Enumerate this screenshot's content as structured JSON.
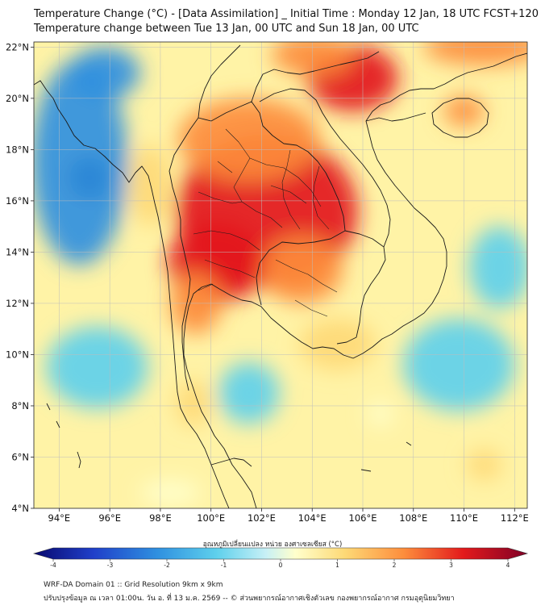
{
  "title": {
    "line1": "Temperature Change (°C) - [Data Assimilation] _ Initial Time : Monday 12 Jan, 18 UTC FCST+120",
    "line2": "Temperature change between Tue 13 Jan, 00 UTC and Sun 18 Jan, 00 UTC"
  },
  "map": {
    "lon_range": [
      93,
      112.5
    ],
    "lat_range": [
      4,
      22.2
    ],
    "lat_ticks": [
      {
        "value": 22,
        "label": "22°N"
      },
      {
        "value": 20,
        "label": "20°N"
      },
      {
        "value": 18,
        "label": "18°N"
      },
      {
        "value": 16,
        "label": "16°N"
      },
      {
        "value": 14,
        "label": "14°N"
      },
      {
        "value": 12,
        "label": "12°N"
      },
      {
        "value": 10,
        "label": "10°N"
      },
      {
        "value": 8,
        "label": "8°N"
      },
      {
        "value": 6,
        "label": "6°N"
      },
      {
        "value": 4,
        "label": "4°N"
      }
    ],
    "lon_ticks": [
      {
        "value": 94,
        "label": "94°E"
      },
      {
        "value": 96,
        "label": "96°E"
      },
      {
        "value": 98,
        "label": "98°E"
      },
      {
        "value": 100,
        "label": "100°E"
      },
      {
        "value": 102,
        "label": "102°E"
      },
      {
        "value": 104,
        "label": "104°E"
      },
      {
        "value": 106,
        "label": "106°E"
      },
      {
        "value": 108,
        "label": "108°E"
      },
      {
        "value": 110,
        "label": "110°E"
      },
      {
        "value": 112,
        "label": "112°E"
      }
    ]
  },
  "colorbar": {
    "label": "อุณหภูมิเปลี่ยนแปลง หน่วย องศาเซลเซียส (°C)",
    "min": -4,
    "max": 4,
    "ticks": [
      "-4",
      "-3",
      "-2",
      "-1",
      "0",
      "1",
      "2",
      "3",
      "4"
    ]
  },
  "footer": {
    "line1": "WRF-DA Domain 01 :: Grid Resolution 9km x 9km",
    "line2": "ปรับปรุงข้อมูล ณ เวลา 01:00น. วัน อ. ที่ 13 ม.ค. 2569 -- © ส่วนพยากรณ์อากาศเชิงตัวเลข กองพยากรณ์อากาศ กรมอุตุนิยมวิทยา"
  },
  "colors": {
    "strong_warm": "#e31a1c",
    "warm": "#fd8d3c",
    "mild_warm": "#fed976",
    "neutral": "#ffffcc",
    "mild_cool": "#c7f0f6",
    "cool": "#5ed0ec",
    "strong_cool": "#1f5fd0"
  },
  "field_blobs": [
    {
      "name": "northeast-thailand-max",
      "lon": 102.2,
      "lat": 15.6,
      "rx": 3.6,
      "ry": 3.0,
      "value": 3.4
    },
    {
      "name": "north-thailand-laos",
      "lon": 101.5,
      "lat": 18.4,
      "rx": 2.8,
      "ry": 1.6,
      "value": 2.9
    },
    {
      "name": "central-thailand",
      "lon": 100.2,
      "lat": 13.6,
      "rx": 1.9,
      "ry": 1.6,
      "value": 3.0
    },
    {
      "name": "western-thailand",
      "lon": 99.4,
      "lat": 12.0,
      "rx": 1.0,
      "ry": 1.2,
      "value": 2.4
    },
    {
      "name": "cambodia-west",
      "lon": 103.6,
      "lat": 13.3,
      "rx": 1.6,
      "ry": 1.3,
      "value": 2.8
    },
    {
      "name": "north-vietnam",
      "lon": 105.6,
      "lat": 20.8,
      "rx": 1.8,
      "ry": 1.3,
      "value": 3.0
    },
    {
      "name": "south-china",
      "lon": 104.0,
      "lat": 21.7,
      "rx": 1.6,
      "ry": 0.8,
      "value": 2.6
    },
    {
      "name": "guangxi",
      "lon": 110.8,
      "lat": 22.0,
      "rx": 2.4,
      "ry": 0.7,
      "value": 2.6
    },
    {
      "name": "hainan",
      "lon": 110.0,
      "lat": 19.5,
      "rx": 0.8,
      "ry": 0.6,
      "value": 2.2
    },
    {
      "name": "isthmus",
      "lon": 99.3,
      "lat": 8.1,
      "rx": 0.7,
      "ry": 0.9,
      "value": 1.9
    },
    {
      "name": "mekong-delta",
      "lon": 105.0,
      "lat": 10.4,
      "rx": 1.5,
      "ry": 1.0,
      "value": 1.2
    },
    {
      "name": "myanmar-coast",
      "lon": 97.6,
      "lat": 16.6,
      "rx": 0.8,
      "ry": 1.6,
      "value": 1.1
    },
    {
      "name": "andaman-cold",
      "lon": 95.2,
      "lat": 16.9,
      "rx": 0.8,
      "ry": 0.8,
      "value": -3.6
    },
    {
      "name": "bay-of-bengal-cool",
      "lon": 94.8,
      "lat": 17.5,
      "rx": 1.9,
      "ry": 4.0,
      "value": -1.4
    },
    {
      "name": "northwest-cool",
      "lon": 95.8,
      "lat": 21.0,
      "rx": 1.4,
      "ry": 1.0,
      "value": -1.4
    },
    {
      "name": "andaman-sea-cool",
      "lon": 95.5,
      "lat": 9.5,
      "rx": 2.0,
      "ry": 1.6,
      "value": -0.9
    },
    {
      "name": "gulf-of-thailand-cool",
      "lon": 101.5,
      "lat": 8.5,
      "rx": 1.2,
      "ry": 1.2,
      "value": -0.6
    },
    {
      "name": "south-china-sea-cool",
      "lon": 109.8,
      "lat": 9.6,
      "rx": 2.2,
      "ry": 1.8,
      "value": -1.0
    },
    {
      "name": "east-sea-cool",
      "lon": 111.4,
      "lat": 13.4,
      "rx": 1.2,
      "ry": 1.6,
      "value": -0.7
    },
    {
      "name": "southeast-warm",
      "lon": 110.8,
      "lat": 5.7,
      "rx": 0.7,
      "ry": 0.6,
      "value": 1.2
    },
    {
      "name": "south-warm",
      "lon": 98.4,
      "lat": 4.6,
      "rx": 1.2,
      "ry": 0.5,
      "value": 0.8
    },
    {
      "name": "gulf-warm-spot",
      "lon": 106.7,
      "lat": 7.7,
      "rx": 0.5,
      "ry": 0.5,
      "value": 0.9
    }
  ]
}
